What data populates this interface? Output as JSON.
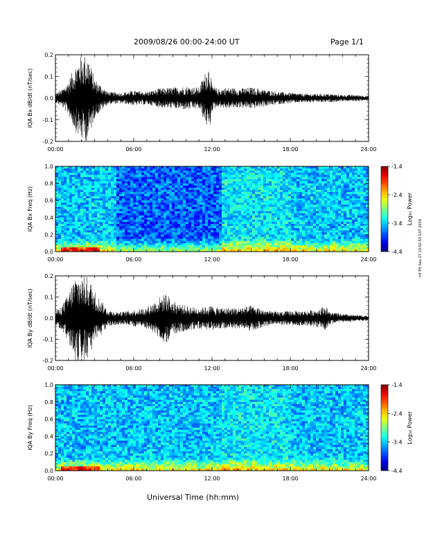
{
  "header": {
    "title": "2009/08/26  00:00-24:00 UT",
    "page": "Page 1/1"
  },
  "x_axis": {
    "label": "Universal Time (hh:mm)",
    "ticks": [
      "00:00",
      "06:00",
      "12:00",
      "18:00",
      "24:00"
    ]
  },
  "side_stamp": "mf PH Sep 27 10:02:50 GST 2019",
  "colorbar": {
    "label": "Log₁₀ Power",
    "ticks": [
      "-1.4",
      "-2.4",
      "-3.4",
      "-4.4"
    ],
    "range": [
      -4.4,
      -1.4
    ]
  },
  "chart_data": [
    {
      "type": "line",
      "ylabel": "IQA Bx dB/dt (nT/sec)",
      "xlim": [
        0,
        24
      ],
      "ylim": [
        -0.2,
        0.2
      ],
      "y_ticks": [
        "0.2",
        "0.1",
        "0.0",
        "-0.1",
        "-0.2"
      ],
      "envelope": {
        "hours": [
          0,
          0.5,
          1,
          1.5,
          2,
          2.5,
          3,
          4,
          5,
          6,
          7,
          8,
          9,
          10,
          11,
          11.8,
          12,
          12.5,
          13,
          14,
          15,
          16,
          17,
          18,
          19,
          20,
          21,
          22,
          23,
          24
        ],
        "amplitude": [
          0.02,
          0.04,
          0.08,
          0.15,
          0.2,
          0.2,
          0.09,
          0.03,
          0.025,
          0.035,
          0.03,
          0.045,
          0.05,
          0.055,
          0.05,
          0.16,
          0.06,
          0.04,
          0.05,
          0.045,
          0.05,
          0.04,
          0.03,
          0.025,
          0.02,
          0.02,
          0.02,
          0.015,
          0.015,
          0.012
        ]
      }
    },
    {
      "type": "heatmap",
      "ylabel": "IQA Bx Freq (Hz)",
      "xlim": [
        0,
        24
      ],
      "ylim": [
        0,
        1
      ],
      "y_ticks": [
        "1.0",
        "0.8",
        "0.6",
        "0.4",
        "0.2",
        "0.0"
      ],
      "quiet_intervals_hours": [
        [
          4.7,
          12.8
        ]
      ]
    },
    {
      "type": "line",
      "ylabel": "IQA By dB/dt (nT/sec)",
      "xlim": [
        0,
        24
      ],
      "ylim": [
        -0.2,
        0.2
      ],
      "y_ticks": [
        "0.2",
        "0.1",
        "0.0",
        "-0.1",
        "-0.2"
      ],
      "envelope": {
        "hours": [
          0,
          0.5,
          1,
          1.5,
          2,
          2.5,
          3,
          4,
          5,
          6,
          7,
          8,
          8.5,
          9,
          10,
          11,
          12,
          12.5,
          13,
          14,
          15,
          16,
          17,
          18,
          19,
          20,
          20.7,
          21,
          22,
          23,
          24
        ],
        "amplitude": [
          0.03,
          0.06,
          0.12,
          0.2,
          0.2,
          0.2,
          0.13,
          0.04,
          0.03,
          0.04,
          0.05,
          0.1,
          0.12,
          0.08,
          0.06,
          0.05,
          0.06,
          0.05,
          0.05,
          0.05,
          0.06,
          0.04,
          0.03,
          0.035,
          0.035,
          0.04,
          0.06,
          0.03,
          0.02,
          0.015,
          0.012
        ]
      }
    },
    {
      "type": "heatmap",
      "ylabel": "IQA By Freq (Hz)",
      "xlim": [
        0,
        24
      ],
      "ylim": [
        0,
        1
      ],
      "y_ticks": [
        "1.0",
        "0.8",
        "0.6",
        "0.4",
        "0.2",
        "0.0"
      ],
      "quiet_intervals_hours": []
    }
  ]
}
